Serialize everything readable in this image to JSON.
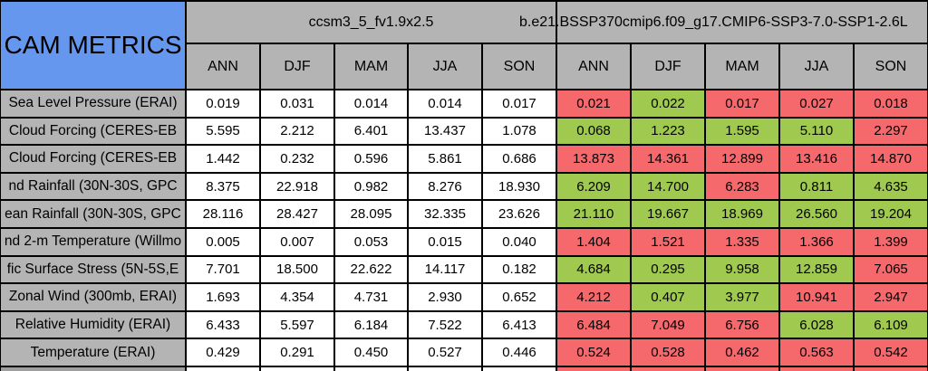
{
  "colors": {
    "title_blue": "#6697ee",
    "header_gray": "#b4b4b4",
    "cell_white": "#ffffff",
    "better_green": "#a0c94f",
    "worse_red": "#f5696d",
    "border_black": "#000000"
  },
  "chart_data": {
    "type": "table",
    "title": "CAM METRICS",
    "column_groups": [
      {
        "name": "ccsm3_5_fv1.9x2.5",
        "columns": [
          "ANN",
          "DJF",
          "MAM",
          "JJA",
          "SON"
        ]
      },
      {
        "name": "b.e21.BSSP370cmip6.f09_g17.CMIP6-SSP3-7.0-SSP1-2.6L",
        "columns": [
          "ANN",
          "DJF",
          "MAM",
          "JJA",
          "SON"
        ]
      }
    ],
    "status_legend": {
      "better": "green cell",
      "worse": "red cell"
    },
    "rows": [
      {
        "label": "Sea Level Pressure (ERAI)",
        "model1": [
          "0.019",
          "0.031",
          "0.014",
          "0.014",
          "0.017"
        ],
        "model2": [
          "0.021",
          "0.022",
          "0.017",
          "0.027",
          "0.018"
        ],
        "model2_status": [
          "worse",
          "better",
          "worse",
          "worse",
          "worse"
        ]
      },
      {
        "label": "Cloud Forcing (CERES-EB",
        "model1": [
          "5.595",
          "2.212",
          "6.401",
          "13.437",
          "1.078"
        ],
        "model2": [
          "0.068",
          "1.223",
          "1.595",
          "5.110",
          "2.297"
        ],
        "model2_status": [
          "better",
          "better",
          "better",
          "better",
          "worse"
        ]
      },
      {
        "label": "Cloud Forcing (CERES-EB",
        "model1": [
          "1.442",
          "0.232",
          "0.596",
          "5.861",
          "0.686"
        ],
        "model2": [
          "13.873",
          "14.361",
          "12.899",
          "13.416",
          "14.870"
        ],
        "model2_status": [
          "worse",
          "worse",
          "worse",
          "worse",
          "worse"
        ]
      },
      {
        "label": "nd Rainfall (30N-30S, GPC",
        "model1": [
          "8.375",
          "22.918",
          "0.982",
          "8.276",
          "18.930"
        ],
        "model2": [
          "6.209",
          "14.700",
          "6.283",
          "0.811",
          "4.635"
        ],
        "model2_status": [
          "better",
          "better",
          "worse",
          "better",
          "better"
        ]
      },
      {
        "label": "ean Rainfall (30N-30S, GPC",
        "model1": [
          "28.116",
          "28.427",
          "28.095",
          "32.335",
          "23.626"
        ],
        "model2": [
          "21.110",
          "19.667",
          "18.969",
          "26.560",
          "19.204"
        ],
        "model2_status": [
          "better",
          "better",
          "better",
          "better",
          "better"
        ]
      },
      {
        "label": "nd 2-m Temperature (Willmo",
        "model1": [
          "0.005",
          "0.007",
          "0.053",
          "0.015",
          "0.040"
        ],
        "model2": [
          "1.404",
          "1.521",
          "1.335",
          "1.366",
          "1.399"
        ],
        "model2_status": [
          "worse",
          "worse",
          "worse",
          "worse",
          "worse"
        ]
      },
      {
        "label": "fic Surface Stress (5N-5S,E",
        "model1": [
          "7.701",
          "18.500",
          "22.622",
          "14.117",
          "0.182"
        ],
        "model2": [
          "4.684",
          "0.295",
          "9.958",
          "12.859",
          "7.065"
        ],
        "model2_status": [
          "better",
          "better",
          "better",
          "better",
          "worse"
        ]
      },
      {
        "label": "Zonal Wind (300mb, ERAI)",
        "model1": [
          "1.693",
          "4.354",
          "4.731",
          "2.930",
          "0.652"
        ],
        "model2": [
          "4.212",
          "0.407",
          "3.977",
          "10.941",
          "2.947"
        ],
        "model2_status": [
          "worse",
          "better",
          "better",
          "worse",
          "worse"
        ]
      },
      {
        "label": "Relative Humidity (ERAI)",
        "model1": [
          "6.433",
          "5.597",
          "6.184",
          "7.522",
          "6.413"
        ],
        "model2": [
          "6.484",
          "7.049",
          "6.756",
          "6.028",
          "6.109"
        ],
        "model2_status": [
          "worse",
          "worse",
          "worse",
          "better",
          "better"
        ]
      },
      {
        "label": "Temperature (ERAI)",
        "model1": [
          "0.429",
          "0.291",
          "0.450",
          "0.527",
          "0.446"
        ],
        "model2": [
          "0.524",
          "0.528",
          "0.462",
          "0.563",
          "0.542"
        ],
        "model2_status": [
          "worse",
          "worse",
          "worse",
          "worse",
          "worse"
        ]
      }
    ]
  }
}
